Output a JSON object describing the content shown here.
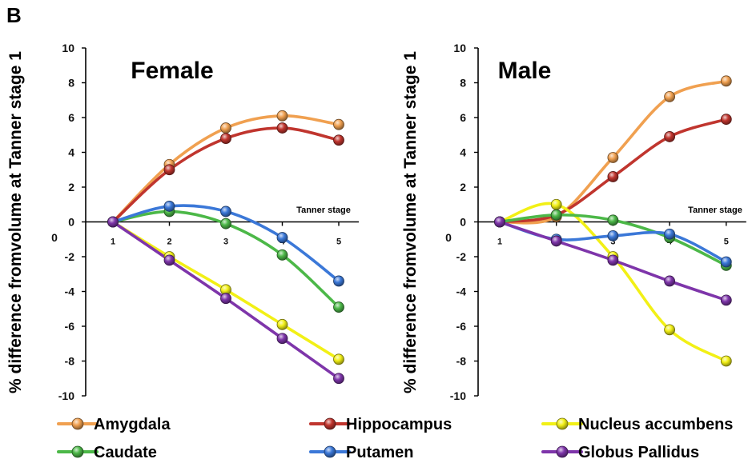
{
  "figure": {
    "panel_label": "B",
    "ylabel": "% difference fromvolume at Tanner stage 1",
    "outer_zero_label": "0",
    "legend_entries": [
      "Amygdala",
      "Hippocampus",
      "Nucleus accumbens",
      "Caudate",
      "Putamen",
      "Globus Pallidus"
    ]
  },
  "chart_data": [
    {
      "type": "line",
      "title": "Female",
      "xlabel": "Tanner stage",
      "ylabel": "% difference fromvolume at Tanner stage 1",
      "x": [
        1,
        2,
        3,
        4,
        5
      ],
      "ylim": [
        -10,
        10
      ],
      "yticks": [
        -10,
        -8,
        -6,
        -4,
        -2,
        0,
        2,
        4,
        6,
        8,
        10
      ],
      "legend": "bottom",
      "grid": false,
      "series": [
        {
          "name": "Amygdala",
          "color": "#F0A050",
          "values": [
            0,
            3.3,
            5.4,
            6.1,
            5.6
          ]
        },
        {
          "name": "Hippocampus",
          "color": "#C0352E",
          "values": [
            0,
            3.0,
            4.8,
            5.4,
            4.7
          ]
        },
        {
          "name": "Nucleus accumbens",
          "color": "#F2F016",
          "values": [
            0,
            -2.0,
            -3.9,
            -5.9,
            -7.9
          ]
        },
        {
          "name": "Caudate",
          "color": "#4CB848",
          "values": [
            0,
            0.6,
            -0.1,
            -1.9,
            -4.9
          ]
        },
        {
          "name": "Putamen",
          "color": "#3B78D8",
          "values": [
            0,
            0.9,
            0.6,
            -0.9,
            -3.4
          ]
        },
        {
          "name": "Globus Pallidus",
          "color": "#7E35AA",
          "values": [
            0,
            -2.2,
            -4.4,
            -6.7,
            -9.0
          ]
        }
      ]
    },
    {
      "type": "line",
      "title": "Male",
      "xlabel": "Tanner stage",
      "ylabel": "% difference fromvolume at Tanner stage 1",
      "x": [
        1,
        2,
        3,
        4,
        5
      ],
      "ylim": [
        -10,
        10
      ],
      "yticks": [
        -10,
        -8,
        -6,
        -4,
        -2,
        0,
        2,
        4,
        6,
        8,
        10
      ],
      "legend": "bottom",
      "grid": false,
      "series": [
        {
          "name": "Amygdala",
          "color": "#F0A050",
          "values": [
            0,
            0.3,
            3.7,
            7.2,
            8.1
          ]
        },
        {
          "name": "Hippocampus",
          "color": "#C0352E",
          "values": [
            0,
            0.4,
            2.6,
            4.9,
            5.9
          ]
        },
        {
          "name": "Nucleus accumbens",
          "color": "#F2F016",
          "values": [
            0,
            1.0,
            -2.0,
            -6.2,
            -8.0
          ]
        },
        {
          "name": "Caudate",
          "color": "#4CB848",
          "values": [
            0,
            0.4,
            0.1,
            -0.9,
            -2.5
          ]
        },
        {
          "name": "Putamen",
          "color": "#3B78D8",
          "values": [
            0,
            -1.0,
            -0.8,
            -0.7,
            -2.3
          ]
        },
        {
          "name": "Globus Pallidus",
          "color": "#7E35AA",
          "values": [
            0,
            -1.1,
            -2.2,
            -3.4,
            -4.5
          ]
        }
      ]
    }
  ]
}
